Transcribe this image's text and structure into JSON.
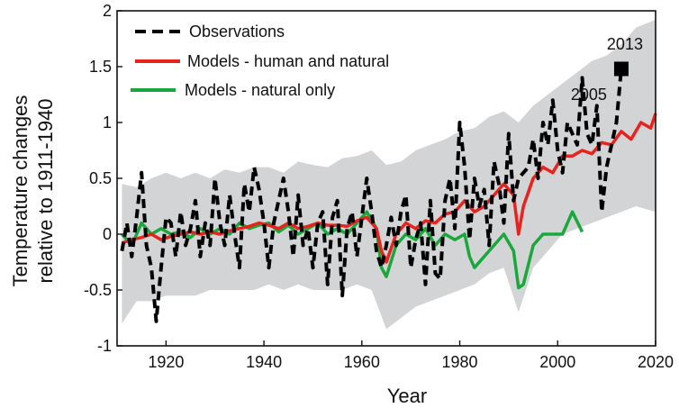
{
  "chart_data": {
    "type": "line",
    "title": "",
    "xlabel": "Year",
    "ylabel_line1": "Temperature changes",
    "ylabel_line2": "relative to 1911-1940",
    "xlim": [
      1910,
      2020
    ],
    "ylim": [
      -1,
      2
    ],
    "xticks": [
      1920,
      1940,
      1960,
      1980,
      2000,
      2020
    ],
    "yticks": [
      -1,
      -0.5,
      0,
      0.5,
      1,
      1.5,
      2
    ],
    "ytick_labels": [
      "-1",
      "-0.5",
      "0",
      "0.5",
      "1",
      "1.5",
      "2"
    ],
    "grid": false,
    "legend_position": "top-left",
    "legend": [
      {
        "label": "Observations",
        "color": "#000000",
        "style": "dashed"
      },
      {
        "label": "Models - human and natural",
        "color": "#e8231e",
        "style": "solid"
      },
      {
        "label": "Models - natural only",
        "color": "#1aa83c",
        "style": "solid"
      }
    ],
    "annotations": [
      {
        "text": "2013",
        "x": 2013,
        "y": 1.5
      },
      {
        "text": "2005",
        "x": 2005,
        "y": 1.5
      }
    ],
    "marker": {
      "x": 2013,
      "y": 1.48
    },
    "band": {
      "name": "",
      "color": "#d3d4d6",
      "x": [
        1911,
        1914,
        1917,
        1920,
        1923,
        1926,
        1929,
        1932,
        1935,
        1938,
        1941,
        1944,
        1947,
        1950,
        1953,
        1956,
        1959,
        1962,
        1965,
        1968,
        1971,
        1974,
        1977,
        1980,
        1983,
        1986,
        1989,
        1992,
        1995,
        1998,
        2001,
        2004,
        2007,
        2010,
        2013,
        2016,
        2020
      ],
      "upper": [
        0.45,
        0.42,
        0.5,
        0.55,
        0.5,
        0.55,
        0.5,
        0.58,
        0.55,
        0.6,
        0.6,
        0.55,
        0.65,
        0.62,
        0.6,
        0.68,
        0.7,
        0.75,
        0.62,
        0.65,
        0.75,
        0.8,
        0.85,
        0.92,
        0.95,
        1.05,
        1.1,
        1.0,
        1.15,
        1.25,
        1.35,
        1.45,
        1.55,
        1.6,
        1.7,
        1.85,
        1.92
      ],
      "lower": [
        -0.8,
        -0.6,
        -0.6,
        -0.55,
        -0.55,
        -0.55,
        -0.5,
        -0.5,
        -0.5,
        -0.5,
        -0.45,
        -0.5,
        -0.45,
        -0.5,
        -0.5,
        -0.5,
        -0.45,
        -0.5,
        -0.85,
        -0.75,
        -0.65,
        -0.6,
        -0.55,
        -0.5,
        -0.45,
        -0.35,
        -0.3,
        -0.7,
        -0.3,
        -0.15,
        0,
        0.05,
        0.1,
        0.15,
        0.2,
        0.25,
        0.2
      ]
    },
    "series": [
      {
        "name": "Models - natural only",
        "color": "#1aa83c",
        "style": "solid",
        "x": [
          1911,
          1913,
          1915,
          1917,
          1919,
          1921,
          1923,
          1925,
          1927,
          1929,
          1931,
          1933,
          1935,
          1937,
          1939,
          1941,
          1943,
          1945,
          1947,
          1949,
          1951,
          1953,
          1955,
          1957,
          1959,
          1961,
          1963,
          1964,
          1965,
          1967,
          1969,
          1971,
          1973,
          1975,
          1977,
          1979,
          1981,
          1982,
          1983,
          1985,
          1987,
          1989,
          1991,
          1992,
          1993,
          1995,
          1997,
          1999,
          2001,
          2003,
          2005
        ],
        "values": [
          0,
          -0.1,
          0.1,
          0,
          0.05,
          0,
          0.02,
          -0.03,
          0.05,
          0,
          0.05,
          0,
          0.1,
          0.05,
          0.08,
          0.1,
          0.02,
          0.08,
          0,
          0.05,
          0.1,
          0,
          0.05,
          0,
          0.1,
          0.2,
          0.05,
          -0.3,
          -0.38,
          -0.1,
          0,
          -0.05,
          0.05,
          -0.1,
          0,
          -0.05,
          0,
          -0.2,
          -0.3,
          -0.2,
          -0.1,
          0,
          -0.15,
          -0.48,
          -0.45,
          -0.1,
          0,
          0,
          0,
          0.2,
          0.02
        ]
      },
      {
        "name": "Models - human and natural",
        "color": "#e8231e",
        "style": "solid",
        "x": [
          1911,
          1913,
          1915,
          1917,
          1919,
          1921,
          1923,
          1925,
          1927,
          1929,
          1931,
          1933,
          1935,
          1937,
          1939,
          1941,
          1943,
          1945,
          1947,
          1949,
          1951,
          1953,
          1955,
          1957,
          1959,
          1961,
          1963,
          1964,
          1965,
          1967,
          1969,
          1971,
          1973,
          1975,
          1977,
          1979,
          1981,
          1983,
          1985,
          1987,
          1989,
          1991,
          1992,
          1993,
          1995,
          1997,
          1999,
          2001,
          2003,
          2005,
          2007,
          2009,
          2011,
          2013,
          2015,
          2017,
          2019,
          2020
        ],
        "values": [
          -0.08,
          -0.05,
          -0.03,
          0,
          -0.05,
          -0.02,
          0,
          0.02,
          0,
          0.02,
          0,
          0.03,
          0.05,
          0.07,
          0.1,
          0.08,
          0.05,
          0.1,
          0.05,
          0.07,
          0.1,
          0.08,
          0.08,
          0.07,
          0.12,
          0.15,
          0.05,
          -0.15,
          -0.25,
          0,
          0.1,
          0.05,
          0.12,
          0.1,
          0.18,
          0.2,
          0.3,
          0.2,
          0.25,
          0.35,
          0.45,
          0.35,
          0,
          0.25,
          0.5,
          0.6,
          0.55,
          0.7,
          0.7,
          0.75,
          0.72,
          0.82,
          0.8,
          0.92,
          0.85,
          1.0,
          0.95,
          1.08
        ]
      },
      {
        "name": "Observations",
        "color": "#000000",
        "style": "dashed",
        "x": [
          1911,
          1912,
          1913,
          1914,
          1915,
          1916,
          1917,
          1918,
          1919,
          1920,
          1921,
          1922,
          1923,
          1924,
          1925,
          1926,
          1927,
          1928,
          1929,
          1930,
          1931,
          1932,
          1933,
          1934,
          1935,
          1936,
          1937,
          1938,
          1939,
          1940,
          1941,
          1942,
          1943,
          1944,
          1945,
          1946,
          1947,
          1948,
          1949,
          1950,
          1951,
          1952,
          1953,
          1954,
          1955,
          1956,
          1957,
          1958,
          1959,
          1960,
          1961,
          1962,
          1963,
          1964,
          1965,
          1966,
          1967,
          1968,
          1969,
          1970,
          1971,
          1972,
          1973,
          1974,
          1975,
          1976,
          1977,
          1978,
          1979,
          1980,
          1981,
          1982,
          1983,
          1984,
          1985,
          1986,
          1987,
          1988,
          1989,
          1990,
          1991,
          1992,
          1993,
          1994,
          1995,
          1996,
          1997,
          1998,
          1999,
          2000,
          2001,
          2002,
          2003,
          2004,
          2005,
          2006,
          2007,
          2008,
          2009,
          2010,
          2011,
          2012,
          2013
        ],
        "values": [
          -0.15,
          0.1,
          -0.2,
          0.15,
          0.55,
          -0.1,
          -0.3,
          -0.78,
          -0.3,
          0.15,
          0.1,
          -0.2,
          0.2,
          -0.1,
          0.05,
          0.3,
          -0.2,
          0.1,
          -0.1,
          0.5,
          0.1,
          -0.1,
          0.35,
          0,
          -0.3,
          0.45,
          0.2,
          0.6,
          0.4,
          0.1,
          -0.3,
          0.1,
          0.3,
          0.5,
          0.2,
          -0.2,
          0.35,
          -0.1,
          0.05,
          -0.3,
          0.1,
          0.2,
          -0.45,
          0.15,
          0.3,
          -0.55,
          0.05,
          0.2,
          -0.2,
          0.15,
          0.5,
          0.2,
          -0.15,
          -0.3,
          -0.1,
          0.15,
          -0.1,
          0.2,
          0.35,
          -0.3,
          -0.05,
          0.1,
          -0.45,
          0.3,
          -0.35,
          -0.4,
          0.3,
          0.5,
          0.05,
          1.0,
          0.6,
          -0.05,
          0.5,
          0.25,
          0.4,
          -0.1,
          0.65,
          0.45,
          0.1,
          0.9,
          0.3,
          0.5,
          0.55,
          0.6,
          0.85,
          0.5,
          1.0,
          0.8,
          1.2,
          0.75,
          0.55,
          1.0,
          0.9,
          0.8,
          1.4,
          0.9,
          0.8,
          1.15,
          0.2,
          0.6,
          0.8,
          1.0,
          1.48
        ]
      }
    ]
  }
}
